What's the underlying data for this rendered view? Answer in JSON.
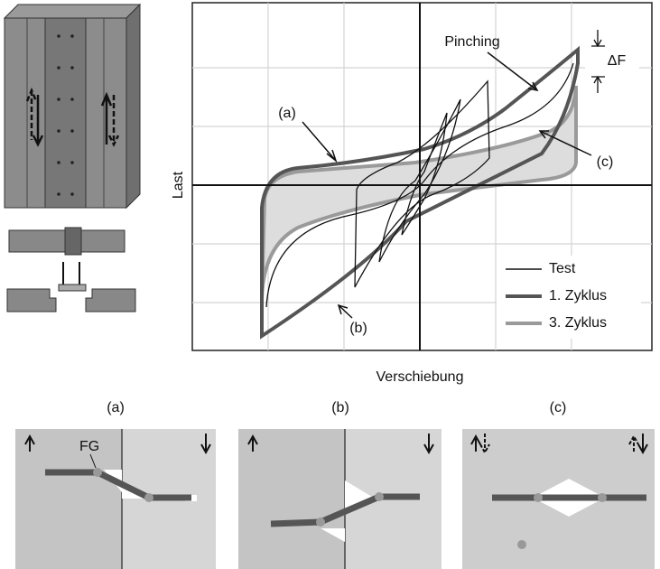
{
  "chart": {
    "y_label": "Last",
    "x_label": "Verschiebung",
    "annotations": {
      "a": "(a)",
      "b": "(b)",
      "c": "(c)",
      "pinching": "Pinching",
      "delta_f": "ΔF"
    },
    "legend": [
      "Test",
      "1. Zyklus",
      "3. Zyklus"
    ]
  },
  "panels": [
    {
      "label": "(a)",
      "annotation": "FG"
    },
    {
      "label": "(b)"
    },
    {
      "label": "(c)"
    }
  ]
}
